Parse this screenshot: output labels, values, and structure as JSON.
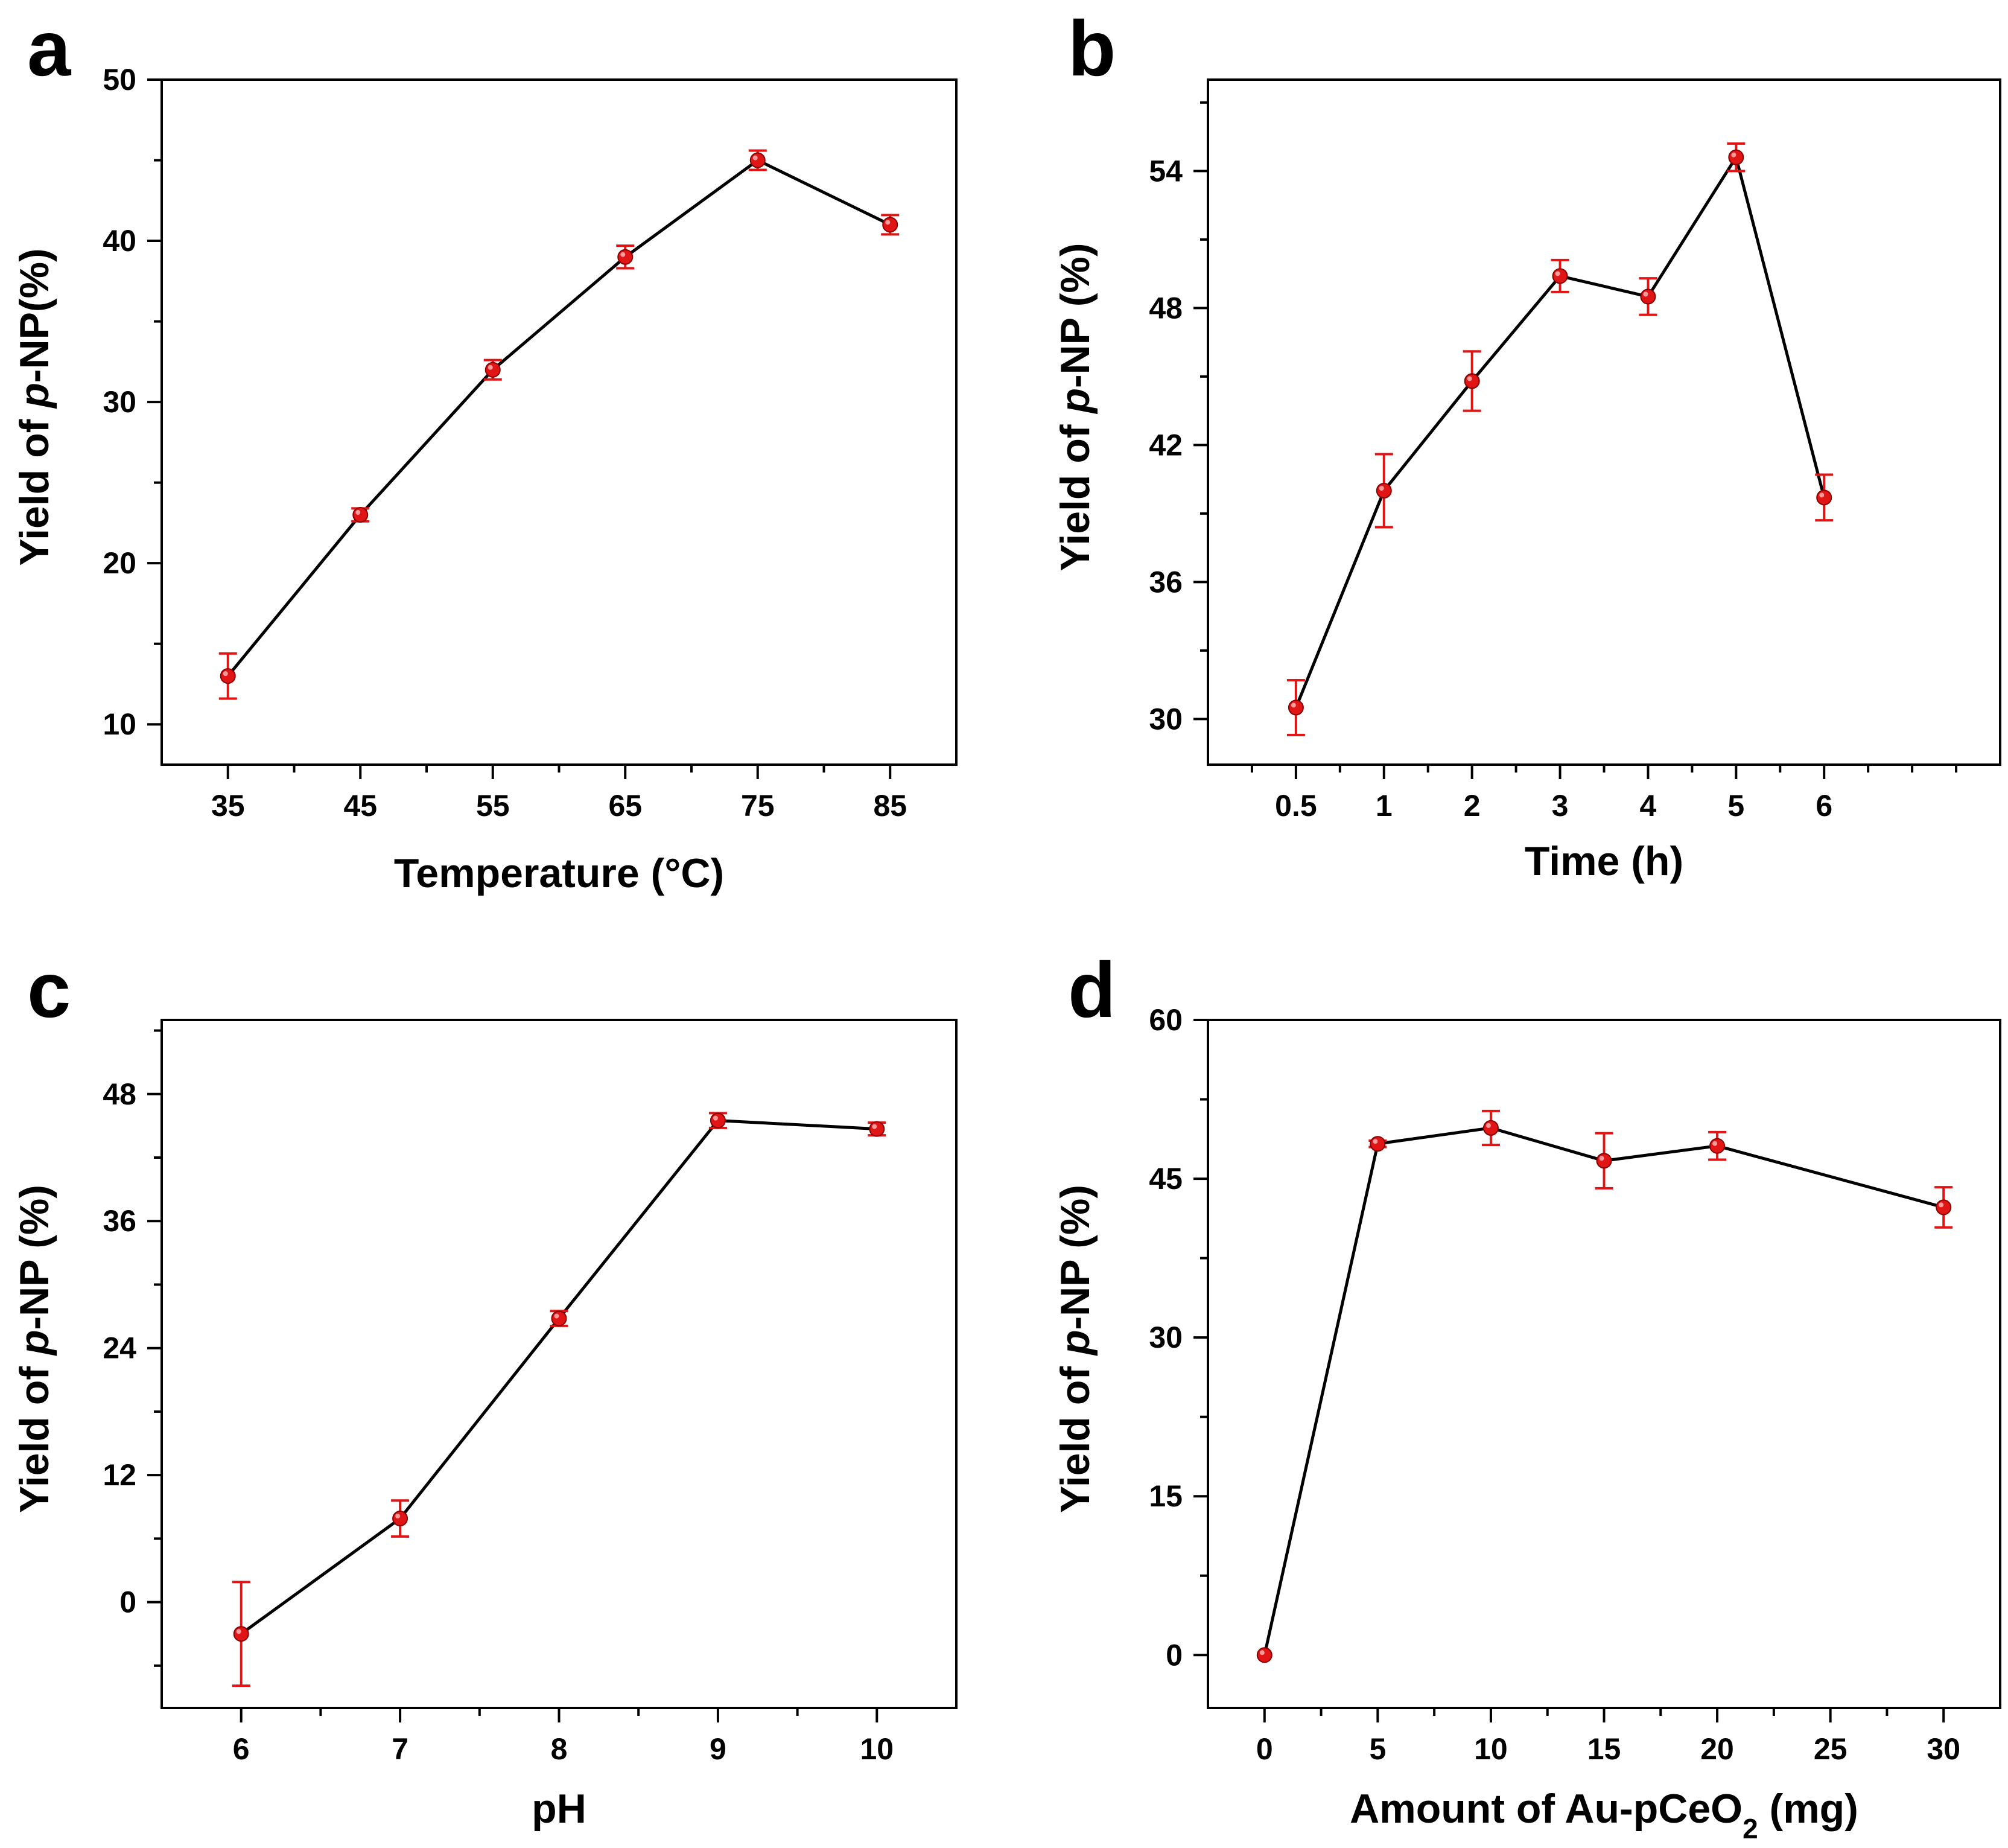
{
  "colors": {
    "line": "#000000",
    "marker": "#e01515",
    "errorbar": "#e01515"
  },
  "chart_data": [
    {
      "panel": "a",
      "type": "line",
      "xlabel": "Temperature (°C)",
      "ylabel_parts": [
        "Yield of ",
        "p",
        "-NP(%)"
      ],
      "x_kind": "linear",
      "xlim": [
        30,
        90
      ],
      "ylim": [
        7.5,
        50
      ],
      "xticks": [
        35,
        45,
        55,
        65,
        75,
        85
      ],
      "xtick_labels": [
        "35",
        "45",
        "55",
        "65",
        "75",
        "85"
      ],
      "yticks": [
        10,
        20,
        30,
        40,
        50
      ],
      "ytick_labels": [
        "10",
        "20",
        "30",
        "40",
        "50"
      ],
      "series": [
        {
          "x": [
            35,
            45,
            55,
            65,
            75,
            85
          ],
          "values": [
            13.0,
            23.0,
            32.0,
            39.0,
            45.0,
            41.0
          ],
          "errors": [
            1.4,
            0.4,
            0.6,
            0.7,
            0.6,
            0.6
          ]
        }
      ]
    },
    {
      "panel": "b",
      "type": "line",
      "xlabel": "Time (h)",
      "ylabel_parts": [
        "Yield of ",
        "p",
        "-NP (%)"
      ],
      "x_kind": "category",
      "xlim": [
        -1,
        8
      ],
      "ylim": [
        28,
        58
      ],
      "xticks": [
        0,
        1,
        2,
        3,
        4,
        5,
        6
      ],
      "xtick_labels": [
        "0.5",
        "1",
        "2",
        "3",
        "4",
        "5",
        "6"
      ],
      "yticks": [
        30,
        36,
        42,
        48,
        54
      ],
      "ytick_labels": [
        "30",
        "36",
        "42",
        "48",
        "54"
      ],
      "series": [
        {
          "x": [
            0,
            1,
            2,
            3,
            4,
            5,
            6
          ],
          "values": [
            30.5,
            40.0,
            44.8,
            49.4,
            48.5,
            54.6,
            39.7
          ],
          "errors": [
            1.2,
            1.6,
            1.3,
            0.7,
            0.8,
            0.6,
            1.0
          ]
        }
      ]
    },
    {
      "panel": "c",
      "type": "line",
      "xlabel": "pH",
      "ylabel_parts": [
        "Yield of ",
        "p",
        "-NP (%)"
      ],
      "x_kind": "linear",
      "xlim": [
        5.5,
        10.5
      ],
      "ylim": [
        -10,
        55
      ],
      "xticks": [
        6,
        7,
        8,
        9,
        10
      ],
      "xtick_labels": [
        "6",
        "7",
        "8",
        "9",
        "10"
      ],
      "yticks": [
        0,
        12,
        24,
        36,
        48
      ],
      "ytick_labels": [
        "0",
        "12",
        "24",
        "36",
        "48"
      ],
      "series": [
        {
          "x": [
            6,
            7,
            8,
            9,
            10
          ],
          "values": [
            -3.0,
            7.9,
            26.8,
            45.5,
            44.7
          ],
          "errors": [
            4.9,
            1.7,
            0.7,
            0.7,
            0.6
          ]
        }
      ]
    },
    {
      "panel": "d",
      "type": "line",
      "xlabel_parts": [
        "Amount of Au-pCeO",
        "2",
        " (mg)"
      ],
      "ylabel_parts": [
        "Yield of ",
        "p",
        "-NP (%)"
      ],
      "x_kind": "linear",
      "xlim": [
        -2.5,
        32.5
      ],
      "ylim": [
        -5,
        60
      ],
      "xticks": [
        0,
        5,
        10,
        15,
        20,
        25,
        30
      ],
      "xtick_labels": [
        "0",
        "5",
        "10",
        "15",
        "20",
        "25",
        "30"
      ],
      "yticks": [
        0,
        15,
        30,
        45,
        60
      ],
      "ytick_labels": [
        "0",
        "15",
        "30",
        "45",
        "60"
      ],
      "series": [
        {
          "x": [
            0,
            5,
            10,
            15,
            20,
            30
          ],
          "values": [
            0.0,
            48.3,
            49.8,
            46.7,
            48.1,
            42.3
          ],
          "errors": [
            0.0,
            0.3,
            1.6,
            2.6,
            1.3,
            1.9
          ]
        }
      ]
    }
  ]
}
